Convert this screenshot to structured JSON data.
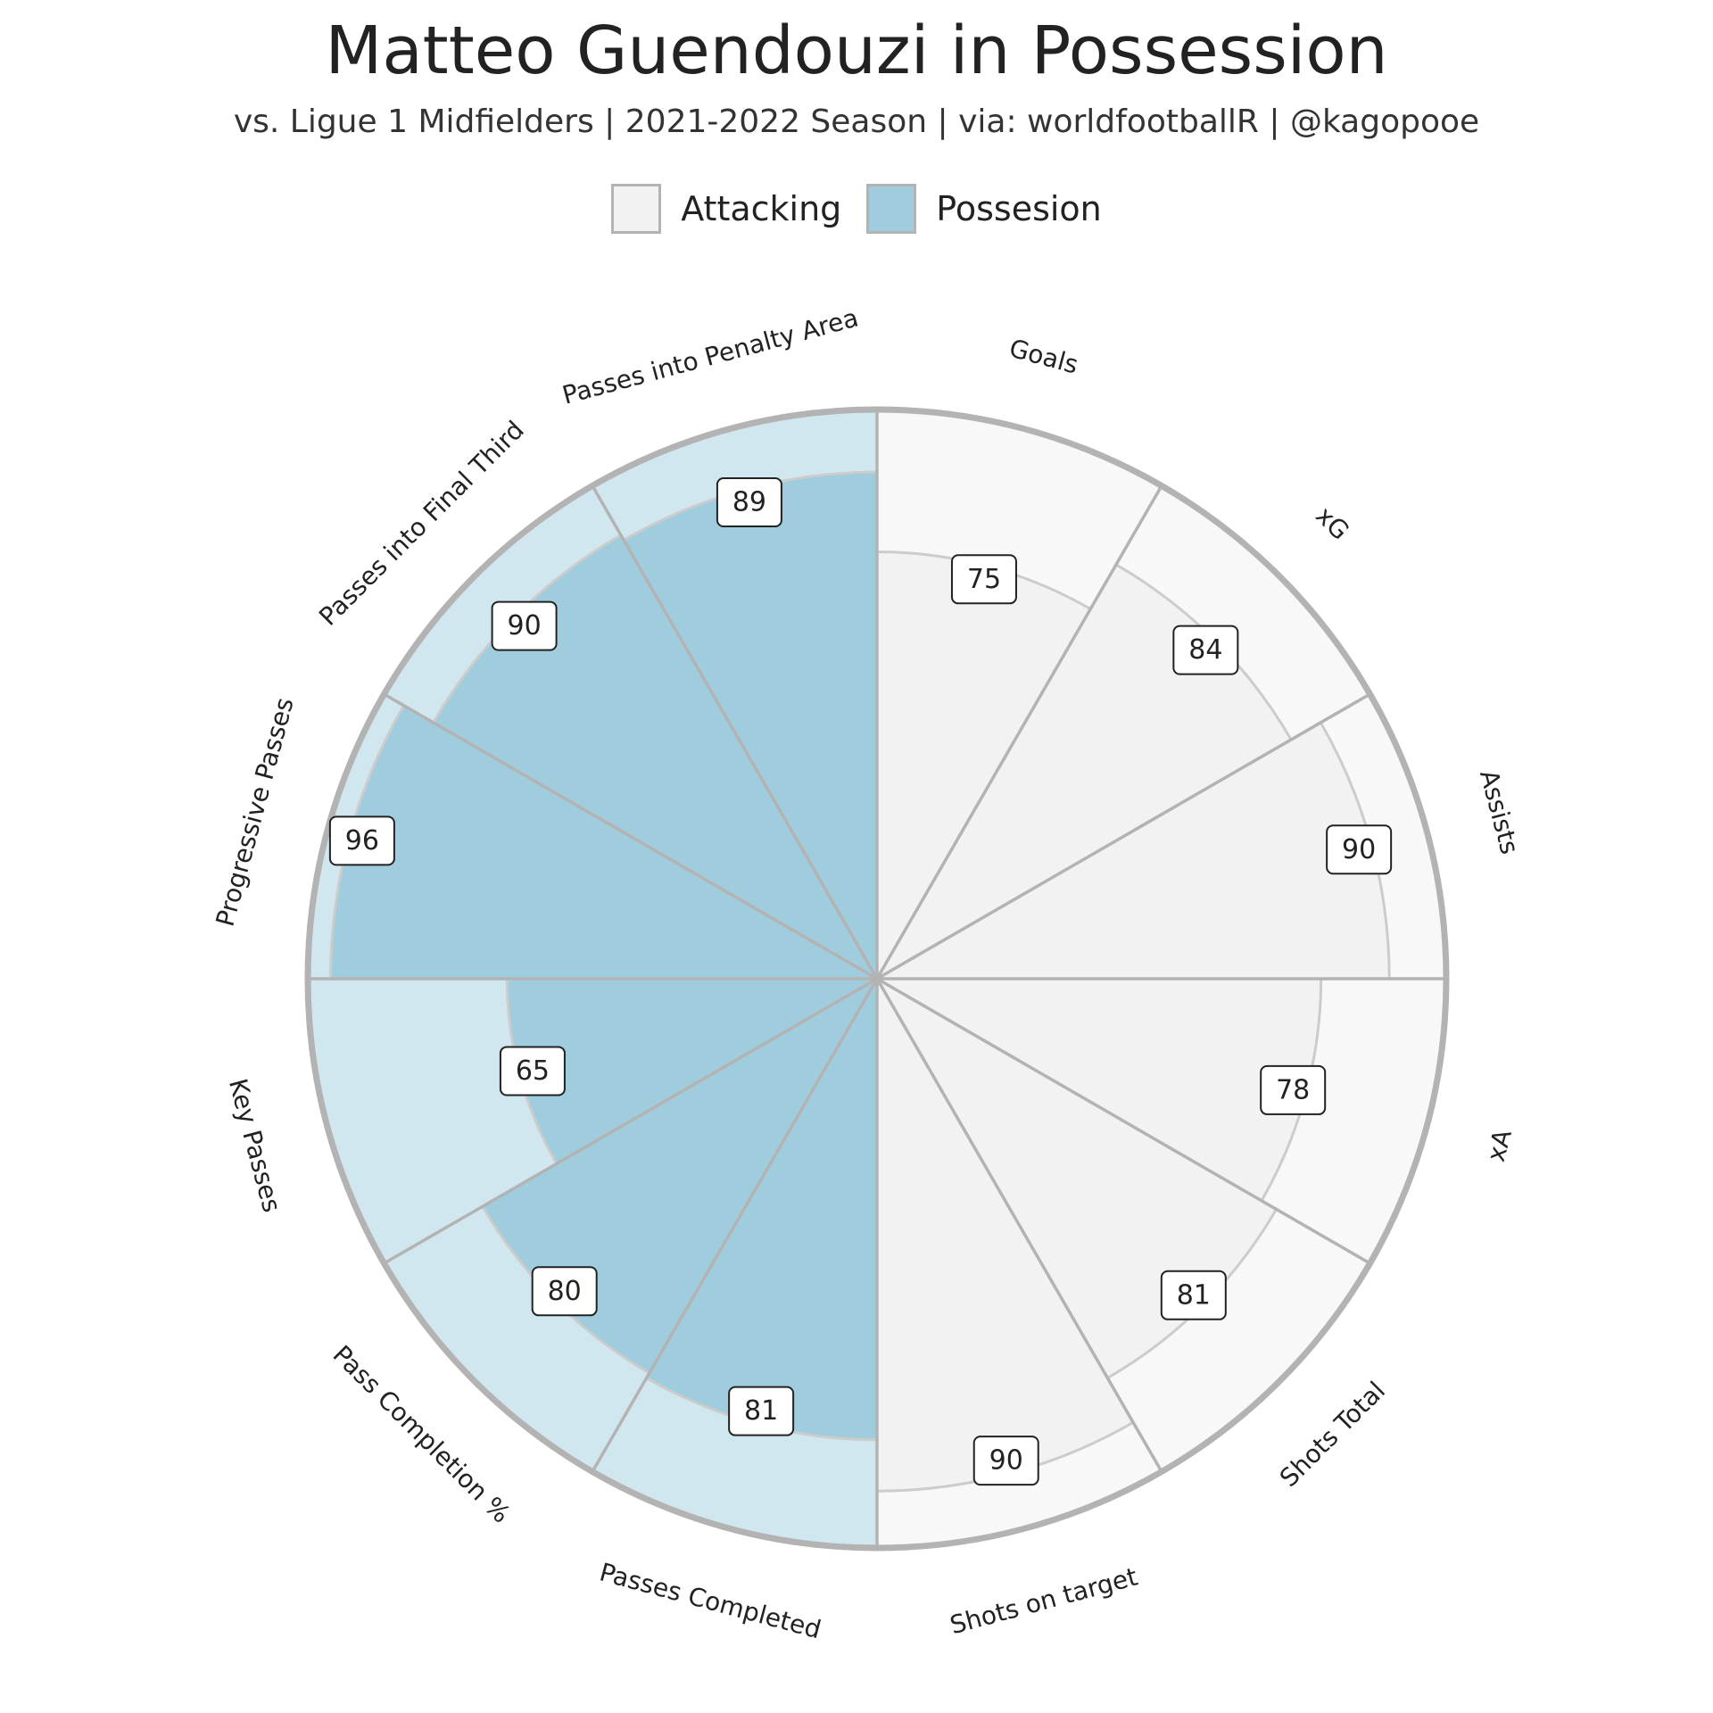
{
  "header": {
    "title": "Matteo Guendouzi in Possession",
    "subtitle": "vs. Ligue 1 Midfielders | 2021-2022 Season | via: worldfootballR | @kagopooe"
  },
  "legend": [
    {
      "label": "Attacking",
      "color": "#f2f2f2"
    },
    {
      "label": "Possesion",
      "color": "#9fcddd"
    }
  ],
  "chart_data": {
    "type": "bar",
    "polar": true,
    "ylim": [
      0,
      100
    ],
    "categories": [
      "Goals",
      "xG",
      "Assists",
      "xA",
      "Shots Total",
      "Shots on target",
      "Passes Completed",
      "Pass Completion %",
      "Key Passes",
      "Progressive Passes",
      "Passes into Final Third",
      "Passes into Penalty Area"
    ],
    "values": [
      75,
      84,
      90,
      78,
      81,
      90,
      81,
      80,
      65,
      96,
      90,
      89
    ],
    "groups": [
      "Attacking",
      "Attacking",
      "Attacking",
      "Attacking",
      "Attacking",
      "Attacking",
      "Possesion",
      "Possesion",
      "Possesion",
      "Possesion",
      "Possesion",
      "Possesion"
    ],
    "colors": {
      "Attacking": "#f2f2f2",
      "Attacking_bg": "#f8f8f8",
      "Possesion": "#9fcddd",
      "Possesion_bg": "#d1e7ef",
      "outline": "#b3b3b3"
    }
  }
}
